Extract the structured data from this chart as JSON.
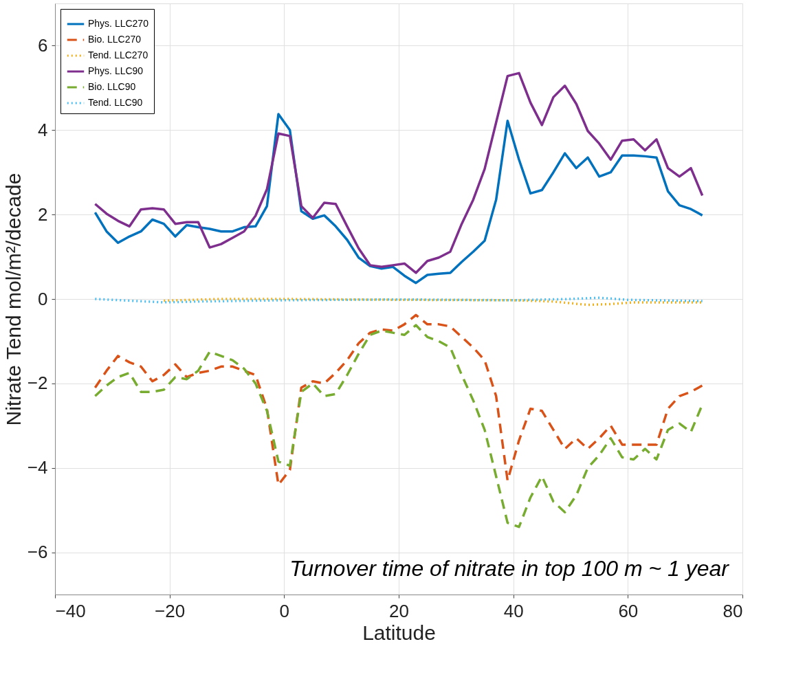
{
  "chart_data": {
    "type": "line",
    "xlabel": "Latitude",
    "ylabel": "Nitrate Tend mol/m²/decade",
    "x": [
      -33,
      -31,
      -29,
      -27,
      -25,
      -23,
      -21,
      -19,
      -17,
      -15,
      -13,
      -11,
      -9,
      -7,
      -5,
      -3,
      -1,
      1,
      3,
      5,
      7,
      9,
      11,
      13,
      15,
      17,
      19,
      21,
      23,
      25,
      27,
      29,
      31,
      33,
      35,
      37,
      39,
      41,
      43,
      45,
      47,
      49,
      51,
      53,
      55,
      57,
      59,
      61,
      63,
      65,
      67,
      69,
      71,
      73
    ],
    "series": [
      {
        "name": "Phys. LLC270",
        "color": "#0072bd",
        "line_style": "solid",
        "values": [
          2.05,
          1.6,
          1.33,
          1.48,
          1.6,
          1.88,
          1.78,
          1.48,
          1.75,
          1.7,
          1.66,
          1.6,
          1.6,
          1.7,
          1.72,
          2.2,
          4.38,
          4.0,
          2.08,
          1.9,
          1.98,
          1.72,
          1.4,
          0.98,
          0.78,
          0.72,
          0.76,
          0.55,
          0.38,
          0.57,
          0.6,
          0.62,
          0.88,
          1.12,
          1.38,
          2.35,
          4.22,
          3.3,
          2.5,
          2.58,
          3.0,
          3.45,
          3.1,
          3.35,
          2.9,
          3.0,
          3.4,
          3.4,
          3.38,
          3.35,
          2.55,
          2.22,
          2.13,
          1.98
        ]
      },
      {
        "name": "Bio. LLC270",
        "color": "#d95319",
        "line_style": "dashed",
        "values": [
          -2.1,
          -1.7,
          -1.35,
          -1.5,
          -1.6,
          -1.95,
          -1.8,
          -1.55,
          -1.85,
          -1.75,
          -1.7,
          -1.6,
          -1.6,
          -1.7,
          -1.8,
          -2.6,
          -4.4,
          -4.05,
          -2.1,
          -1.95,
          -2.0,
          -1.75,
          -1.45,
          -1.05,
          -0.8,
          -0.72,
          -0.75,
          -0.6,
          -0.38,
          -0.6,
          -0.6,
          -0.65,
          -0.9,
          -1.15,
          -1.45,
          -2.3,
          -4.3,
          -3.35,
          -2.6,
          -2.65,
          -3.1,
          -3.55,
          -3.3,
          -3.55,
          -3.3,
          -3.0,
          -3.45,
          -3.45,
          -3.45,
          -3.45,
          -2.6,
          -2.3,
          -2.2,
          -2.05
        ]
      },
      {
        "name": "Tend. LLC270",
        "color": "#edb120",
        "line_style": "dotted",
        "x": [
          -21,
          -11,
          0,
          20,
          40,
          47,
          53,
          57,
          61,
          73
        ],
        "values": [
          -0.04,
          0,
          0,
          -0.02,
          -0.03,
          -0.06,
          -0.14,
          -0.12,
          -0.08,
          -0.08
        ]
      },
      {
        "name": "Phys. LLC90",
        "color": "#7e2f8e",
        "line_style": "solid",
        "values": [
          2.25,
          2.02,
          1.85,
          1.72,
          2.12,
          2.15,
          2.12,
          1.78,
          1.82,
          1.82,
          1.22,
          1.3,
          1.45,
          1.6,
          1.97,
          2.6,
          3.92,
          3.86,
          2.2,
          1.92,
          2.28,
          2.25,
          1.72,
          1.2,
          0.8,
          0.76,
          0.8,
          0.84,
          0.62,
          0.9,
          0.98,
          1.12,
          1.78,
          2.35,
          3.08,
          4.18,
          5.28,
          5.35,
          4.65,
          4.12,
          4.78,
          5.05,
          4.62,
          3.98,
          3.68,
          3.3,
          3.75,
          3.78,
          3.52,
          3.78,
          3.1,
          2.9,
          3.1,
          2.45
        ]
      },
      {
        "name": "Bio. LLC90",
        "color": "#77ac30",
        "line_style": "dashed",
        "values": [
          -2.3,
          -2.05,
          -1.85,
          -1.75,
          -2.2,
          -2.2,
          -2.15,
          -1.85,
          -1.9,
          -1.7,
          -1.25,
          -1.35,
          -1.45,
          -1.65,
          -2.0,
          -2.65,
          -3.85,
          -3.95,
          -2.2,
          -2.0,
          -2.3,
          -2.25,
          -1.8,
          -1.3,
          -0.85,
          -0.75,
          -0.8,
          -0.85,
          -0.62,
          -0.9,
          -1.0,
          -1.15,
          -1.8,
          -2.4,
          -3.1,
          -4.2,
          -5.3,
          -5.4,
          -4.7,
          -4.2,
          -4.8,
          -5.05,
          -4.65,
          -4.0,
          -3.7,
          -3.3,
          -3.75,
          -3.8,
          -3.55,
          -3.8,
          -3.1,
          -2.95,
          -3.15,
          -2.5
        ]
      },
      {
        "name": "Tend. LLC90",
        "color": "#4dbeee",
        "line_style": "dotted",
        "x": [
          -33,
          -21,
          -15,
          0,
          20,
          40,
          50,
          55,
          60,
          73
        ],
        "values": [
          0,
          -0.08,
          -0.06,
          -0.03,
          -0.01,
          -0.03,
          0,
          0.03,
          -0.02,
          -0.05
        ]
      }
    ],
    "xlim": [
      -40,
      80
    ],
    "xticks": [
      -40,
      -20,
      0,
      20,
      40,
      60,
      80
    ],
    "ylim": [
      -7,
      7
    ],
    "yticks": [
      -6,
      -4,
      -2,
      0,
      2,
      4,
      6
    ],
    "grid": true,
    "legend": "top left",
    "marker": "none",
    "annotations": [
      "Turnover time of nitrate in top 100 m ~ 1 year"
    ]
  }
}
